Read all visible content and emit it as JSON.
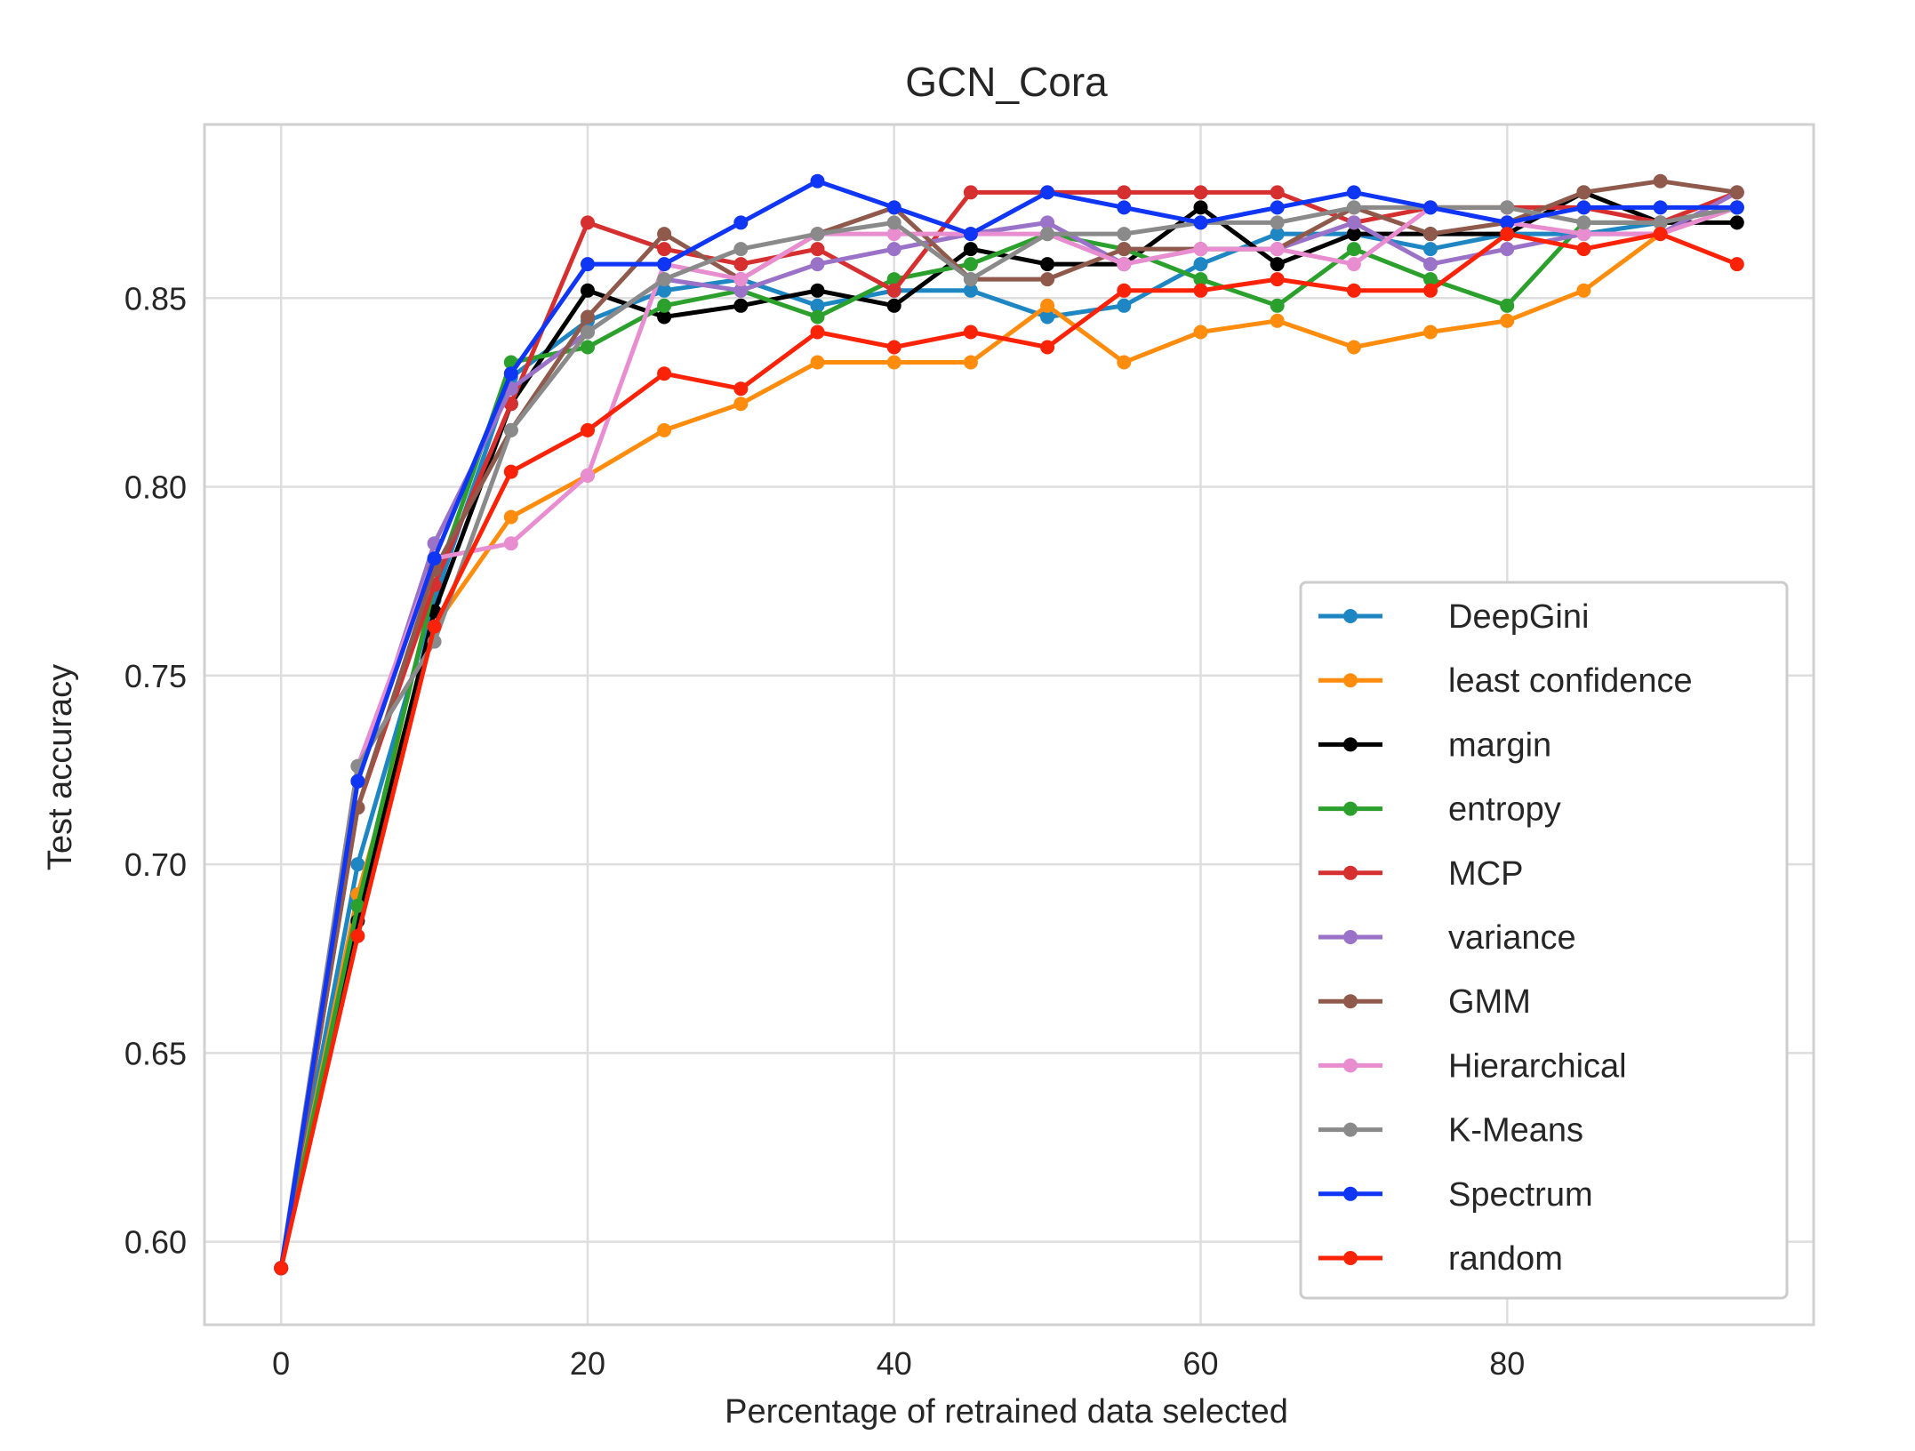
{
  "chart_data": {
    "type": "line",
    "title": "GCN_Cora",
    "xlabel": "Percentage of retrained data selected",
    "ylabel": "Test accuracy",
    "xlim": [
      -5,
      100
    ],
    "ylim": [
      0.578,
      0.896
    ],
    "x_ticks": [
      0,
      20,
      40,
      60,
      80
    ],
    "y_ticks": [
      0.6,
      0.65,
      0.7,
      0.75,
      0.8,
      0.85
    ],
    "x_tick_labels": [
      "0",
      "20",
      "40",
      "60",
      "80"
    ],
    "y_tick_labels": [
      "0.60",
      "0.65",
      "0.70",
      "0.75",
      "0.80",
      "0.85"
    ],
    "grid": true,
    "legend_position": "lower-right",
    "x": [
      0,
      5,
      10,
      15,
      20,
      25,
      30,
      35,
      40,
      45,
      50,
      55,
      60,
      65,
      70,
      75,
      80,
      85,
      90,
      95
    ],
    "series": [
      {
        "name": "DeepGini",
        "color": "#1f86c4",
        "values": [
          0.593,
          0.7,
          0.77,
          0.829,
          0.844,
          0.852,
          0.855,
          0.848,
          0.852,
          0.852,
          0.845,
          0.848,
          0.859,
          0.867,
          0.867,
          0.863,
          0.867,
          0.867,
          0.87,
          0.874
        ]
      },
      {
        "name": "least confidence",
        "color": "#ff8c0c",
        "values": [
          0.593,
          0.692,
          0.763,
          0.792,
          0.803,
          0.815,
          0.822,
          0.833,
          0.833,
          0.833,
          0.848,
          0.833,
          0.841,
          0.844,
          0.837,
          0.841,
          0.844,
          0.852,
          0.867,
          0.874
        ]
      },
      {
        "name": "margin",
        "color": "#000000",
        "values": [
          0.593,
          0.685,
          0.767,
          0.822,
          0.852,
          0.845,
          0.848,
          0.852,
          0.848,
          0.863,
          0.859,
          0.859,
          0.874,
          0.859,
          0.867,
          0.867,
          0.867,
          0.878,
          0.87,
          0.87
        ]
      },
      {
        "name": "entropy",
        "color": "#2ca02c",
        "values": [
          0.593,
          0.689,
          0.774,
          0.833,
          0.837,
          0.848,
          0.852,
          0.845,
          0.855,
          0.859,
          0.867,
          0.863,
          0.855,
          0.848,
          0.863,
          0.855,
          0.848,
          0.87,
          0.87,
          0.874
        ]
      },
      {
        "name": "MCP",
        "color": "#d62f2f",
        "values": [
          0.593,
          0.715,
          0.774,
          0.822,
          0.87,
          0.863,
          0.859,
          0.863,
          0.852,
          0.878,
          0.878,
          0.878,
          0.878,
          0.878,
          0.87,
          0.874,
          0.874,
          0.874,
          0.87,
          0.878
        ]
      },
      {
        "name": "variance",
        "color": "#9a72c8",
        "values": [
          0.593,
          0.722,
          0.785,
          0.826,
          0.841,
          0.855,
          0.852,
          0.859,
          0.863,
          0.867,
          0.87,
          0.859,
          0.863,
          0.863,
          0.87,
          0.859,
          0.863,
          0.867,
          0.867,
          0.878
        ]
      },
      {
        "name": "GMM",
        "color": "#8f5a4c",
        "values": [
          0.593,
          0.715,
          0.778,
          0.815,
          0.845,
          0.867,
          0.855,
          0.867,
          0.874,
          0.855,
          0.855,
          0.863,
          0.863,
          0.863,
          0.874,
          0.867,
          0.87,
          0.878,
          0.881,
          0.878
        ]
      },
      {
        "name": "Hierarchical",
        "color": "#e88dcf",
        "values": [
          0.593,
          0.726,
          0.781,
          0.785,
          0.803,
          0.859,
          0.855,
          0.867,
          0.867,
          0.867,
          0.867,
          0.859,
          0.863,
          0.863,
          0.859,
          0.874,
          0.87,
          0.867,
          0.867,
          0.874
        ]
      },
      {
        "name": "K-Means",
        "color": "#8a8a8a",
        "values": [
          0.593,
          0.726,
          0.759,
          0.815,
          0.841,
          0.855,
          0.863,
          0.867,
          0.87,
          0.855,
          0.867,
          0.867,
          0.87,
          0.87,
          0.874,
          0.874,
          0.874,
          0.87,
          0.87,
          0.874
        ]
      },
      {
        "name": "Spectrum",
        "color": "#0f35f5",
        "values": [
          0.593,
          0.722,
          0.781,
          0.83,
          0.859,
          0.859,
          0.87,
          0.881,
          0.874,
          0.867,
          0.878,
          0.874,
          0.87,
          0.874,
          0.878,
          0.874,
          0.87,
          0.874,
          0.874,
          0.874
        ]
      },
      {
        "name": "random",
        "color": "#fb2307",
        "values": [
          0.593,
          0.681,
          0.763,
          0.804,
          0.815,
          0.83,
          0.826,
          0.841,
          0.837,
          0.841,
          0.837,
          0.852,
          0.852,
          0.855,
          0.852,
          0.852,
          0.867,
          0.863,
          0.867,
          0.859
        ]
      }
    ]
  }
}
